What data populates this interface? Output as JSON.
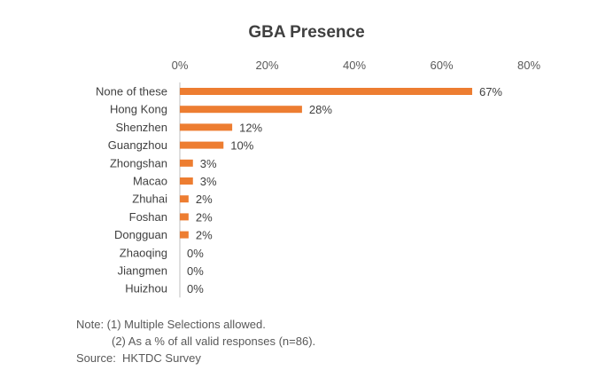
{
  "chart_data": {
    "type": "bar",
    "orientation": "horizontal",
    "title": "GBA Presence",
    "categories": [
      "None of these",
      "Hong Kong",
      "Shenzhen",
      "Guangzhou",
      "Zhongshan",
      "Macao",
      "Zhuhai",
      "Foshan",
      "Dongguan",
      "Zhaoqing",
      "Jiangmen",
      "Huizhou"
    ],
    "values": [
      67,
      28,
      12,
      10,
      3,
      3,
      2,
      2,
      2,
      0,
      0,
      0
    ],
    "value_labels": [
      "67%",
      "28%",
      "12%",
      "10%",
      "3%",
      "3%",
      "2%",
      "2%",
      "2%",
      "0%",
      "0%",
      "0%"
    ],
    "xlim": [
      0,
      80
    ],
    "ticks": [
      0,
      20,
      40,
      60,
      80
    ],
    "tick_labels": [
      "0%",
      "20%",
      "40%",
      "60%",
      "80%"
    ],
    "axis_position": "top",
    "grid": false,
    "legend": "none",
    "bar_color": "#ED7D31"
  },
  "notes": {
    "line1": "Note: (1) Multiple Selections allowed.",
    "line2": "(2) As a % of all valid responses (n=86).",
    "source": "Source:  HKTDC Survey"
  }
}
